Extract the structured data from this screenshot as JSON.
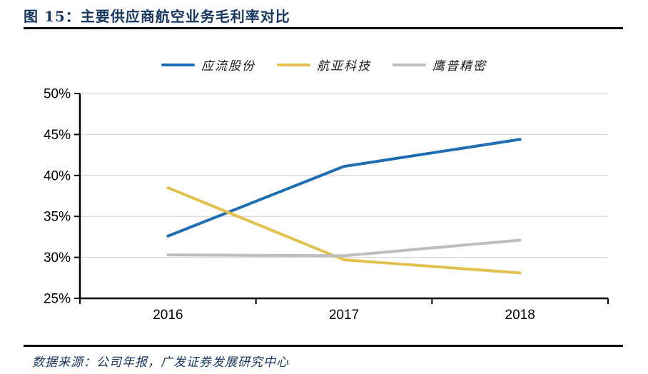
{
  "header": {
    "title": "图 15：主要供应商航空业务毛利率对比"
  },
  "footer": {
    "source": "数据来源：公司年报，广发证券发展研究中心"
  },
  "colors": {
    "title_navy": "#17375E",
    "axis_black": "#000000",
    "gridline_gray": "#D9D9D9"
  },
  "chart_data": {
    "type": "line",
    "title": "主要供应商航空业务毛利率对比",
    "categories": [
      "2016",
      "2017",
      "2018"
    ],
    "series": [
      {
        "name": "应流股份",
        "color": "#1F6DB2",
        "values": [
          32.6,
          41.1,
          44.4
        ]
      },
      {
        "name": "航亚科技",
        "color": "#E2C24F",
        "values": [
          38.5,
          29.7,
          28.1
        ]
      },
      {
        "name": "鹰普精密",
        "color": "#BEBEBE",
        "values": [
          30.3,
          30.2,
          32.1
        ]
      }
    ],
    "ylabel": "",
    "xlabel": "",
    "ylim": [
      25,
      50
    ],
    "ytick_step": 5,
    "yticks": [
      "25%",
      "30%",
      "35%",
      "40%",
      "45%",
      "50%"
    ],
    "grid": "horizontal",
    "legend_position": "top"
  }
}
